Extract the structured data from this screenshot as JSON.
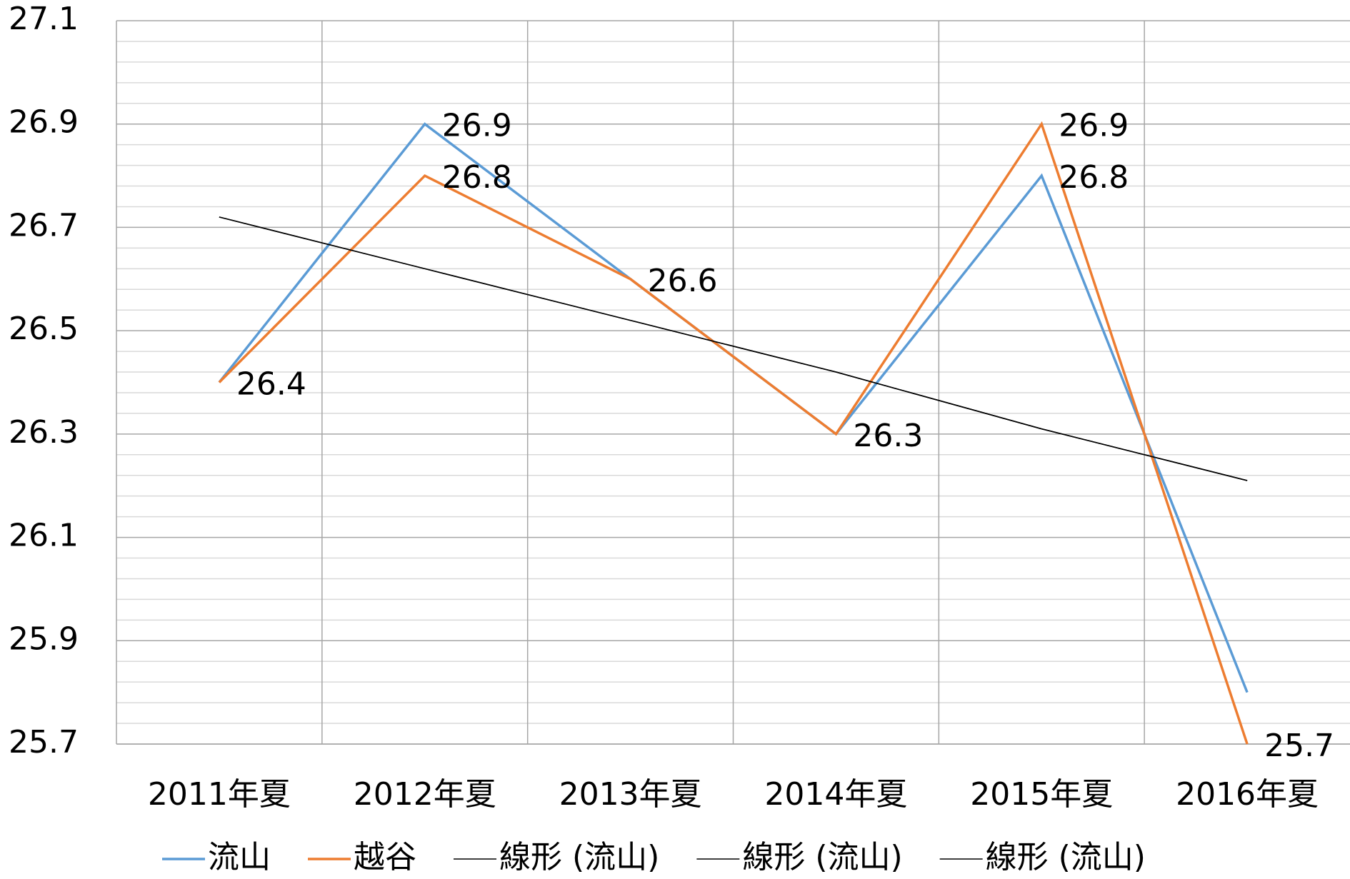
{
  "chart_data": {
    "type": "line",
    "categories": [
      "2011年夏",
      "2012年夏",
      "2013年夏",
      "2014年夏",
      "2015年夏",
      "2016年夏"
    ],
    "series": [
      {
        "name": "流山",
        "color": "#5b9bd5",
        "values": [
          26.4,
          26.9,
          26.6,
          26.3,
          26.8,
          25.8
        ],
        "show_labels": [
          true,
          true,
          true,
          true,
          true,
          false
        ]
      },
      {
        "name": "越谷",
        "color": "#ed7d31",
        "values": [
          26.4,
          26.8,
          26.6,
          26.3,
          26.9,
          25.7
        ],
        "show_labels": [
          false,
          true,
          false,
          false,
          true,
          true
        ]
      },
      {
        "name": "線形 (流山)",
        "color": "#000000",
        "trendline": true,
        "values": [
          26.72,
          26.62,
          26.52,
          26.42,
          26.31,
          26.21
        ]
      },
      {
        "name": "線形 (流山)",
        "color": "#000000",
        "trendline": true,
        "values": [
          26.72,
          26.62,
          26.52,
          26.42,
          26.31,
          26.21
        ]
      },
      {
        "name": "線形 (流山)",
        "color": "#000000",
        "trendline": true,
        "values": [
          26.72,
          26.62,
          26.52,
          26.42,
          26.31,
          26.21
        ]
      }
    ],
    "ylim": [
      25.7,
      27.1
    ],
    "yticks": [
      25.7,
      25.9,
      26.1,
      26.3,
      26.5,
      26.7,
      26.9,
      27.1
    ],
    "grid": true,
    "minor_grid": true,
    "legend": "bottom"
  }
}
